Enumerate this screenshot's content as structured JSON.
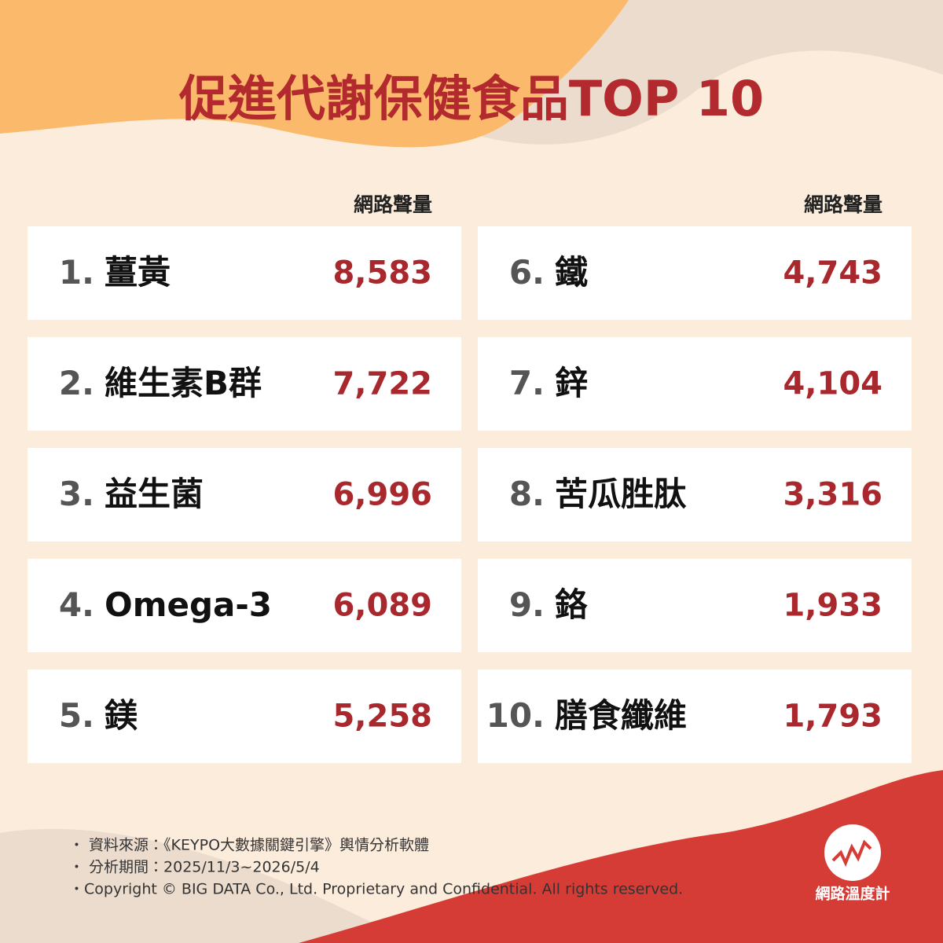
{
  "header": {
    "title": "促進代謝保健食品TOP 10"
  },
  "columns": [
    {
      "header": "網路聲量",
      "items": [
        {
          "rank": "1.",
          "name": "薑黃",
          "value": "8,583"
        },
        {
          "rank": "2.",
          "name": "維生素B群",
          "value": "7,722"
        },
        {
          "rank": "3.",
          "name": "益生菌",
          "value": "6,996"
        },
        {
          "rank": "4.",
          "name": "Omega-3",
          "value": "6,089"
        },
        {
          "rank": "5.",
          "name": "鎂",
          "value": "5,258"
        }
      ]
    },
    {
      "header": "網路聲量",
      "items": [
        {
          "rank": "6.",
          "name": "鐵",
          "value": "4,743"
        },
        {
          "rank": "7.",
          "name": "鋅",
          "value": "4,104"
        },
        {
          "rank": "8.",
          "name": "苦瓜胜肽",
          "value": "3,316"
        },
        {
          "rank": "9.",
          "name": "鉻",
          "value": "1,933"
        },
        {
          "rank": "10.",
          "name": "膳食纖維",
          "value": "1,793"
        }
      ]
    }
  ],
  "footer": {
    "notes": [
      "・ 資料來源：《KEYPO大數據關鍵引擎》輿情分析軟體",
      "・ 分析期間：2025/11/3~2026/5/4",
      "・Copyright © BIG DATA Co., Ltd. Proprietary and Confidential. All rights reserved."
    ]
  },
  "logo": {
    "label": "網路溫度計"
  }
}
